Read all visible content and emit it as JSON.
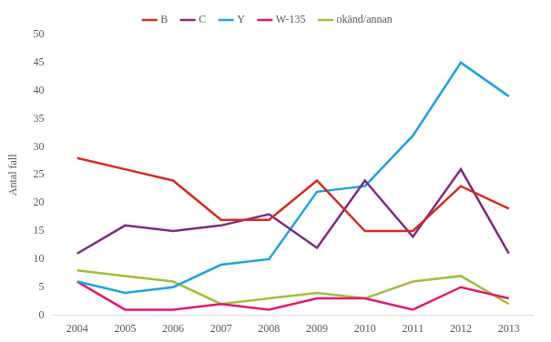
{
  "chart_data": {
    "type": "line",
    "y_label": "Antal fall",
    "categories": [
      "2004",
      "2005",
      "2006",
      "2007",
      "2008",
      "2009",
      "2010",
      "2011",
      "2012",
      "2013"
    ],
    "series": [
      {
        "name": "B",
        "color": "#d42a20",
        "values": [
          28,
          26,
          24,
          17,
          17,
          24,
          15,
          15,
          23,
          19
        ]
      },
      {
        "name": "C",
        "color": "#7e2a80",
        "values": [
          11,
          16,
          15,
          16,
          18,
          12,
          24,
          14,
          26,
          11
        ]
      },
      {
        "name": "Y",
        "color": "#1ea2de",
        "values": [
          6,
          4,
          5,
          9,
          10,
          22,
          23,
          32,
          45,
          39
        ]
      },
      {
        "name": "W-135",
        "color": "#e2196e",
        "values": [
          6,
          1,
          1,
          2,
          1,
          3,
          3,
          1,
          5,
          3
        ]
      },
      {
        "name": "okänd/annan",
        "color": "#9dc03a",
        "values": [
          8,
          7,
          6,
          2,
          3,
          4,
          3,
          6,
          7,
          2
        ]
      }
    ],
    "ylim": [
      0,
      50
    ],
    "yticks": [
      0,
      5,
      10,
      15,
      20,
      25,
      30,
      35,
      40,
      45,
      50
    ],
    "grid": false,
    "legend": "top"
  }
}
